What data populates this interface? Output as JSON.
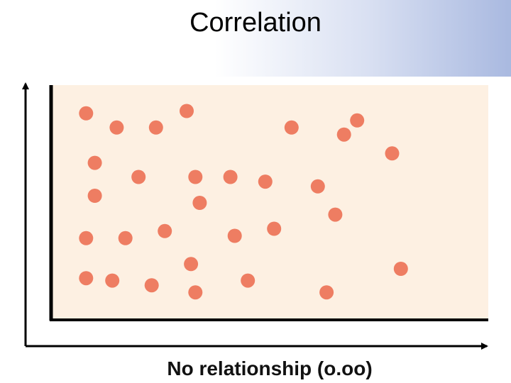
{
  "slide": {
    "title": "Correlation"
  },
  "colors": {
    "plot_background": "#fdf0e2",
    "point": "#ee7d62",
    "axis": "#000000"
  },
  "chart_data": {
    "type": "scatter",
    "title": "",
    "label": "No relationship (o.oo)",
    "xlabel": "",
    "ylabel": "",
    "xlim": [
      0,
      100
    ],
    "ylim": [
      0,
      100
    ],
    "grid": false,
    "tick_labels": false,
    "points": [
      {
        "x": 8,
        "y": 88
      },
      {
        "x": 15,
        "y": 82
      },
      {
        "x": 24,
        "y": 82
      },
      {
        "x": 31,
        "y": 89
      },
      {
        "x": 55,
        "y": 82
      },
      {
        "x": 67,
        "y": 79
      },
      {
        "x": 70,
        "y": 85
      },
      {
        "x": 78,
        "y": 71
      },
      {
        "x": 10,
        "y": 67
      },
      {
        "x": 20,
        "y": 61
      },
      {
        "x": 33,
        "y": 61
      },
      {
        "x": 41,
        "y": 61
      },
      {
        "x": 49,
        "y": 59
      },
      {
        "x": 61,
        "y": 57
      },
      {
        "x": 10,
        "y": 53
      },
      {
        "x": 34,
        "y": 50
      },
      {
        "x": 65,
        "y": 45
      },
      {
        "x": 8,
        "y": 35
      },
      {
        "x": 17,
        "y": 35
      },
      {
        "x": 26,
        "y": 38
      },
      {
        "x": 42,
        "y": 36
      },
      {
        "x": 51,
        "y": 39
      },
      {
        "x": 32,
        "y": 24
      },
      {
        "x": 80,
        "y": 22
      },
      {
        "x": 8,
        "y": 18
      },
      {
        "x": 14,
        "y": 17
      },
      {
        "x": 23,
        "y": 15
      },
      {
        "x": 33,
        "y": 12
      },
      {
        "x": 45,
        "y": 17
      },
      {
        "x": 63,
        "y": 12
      }
    ]
  }
}
